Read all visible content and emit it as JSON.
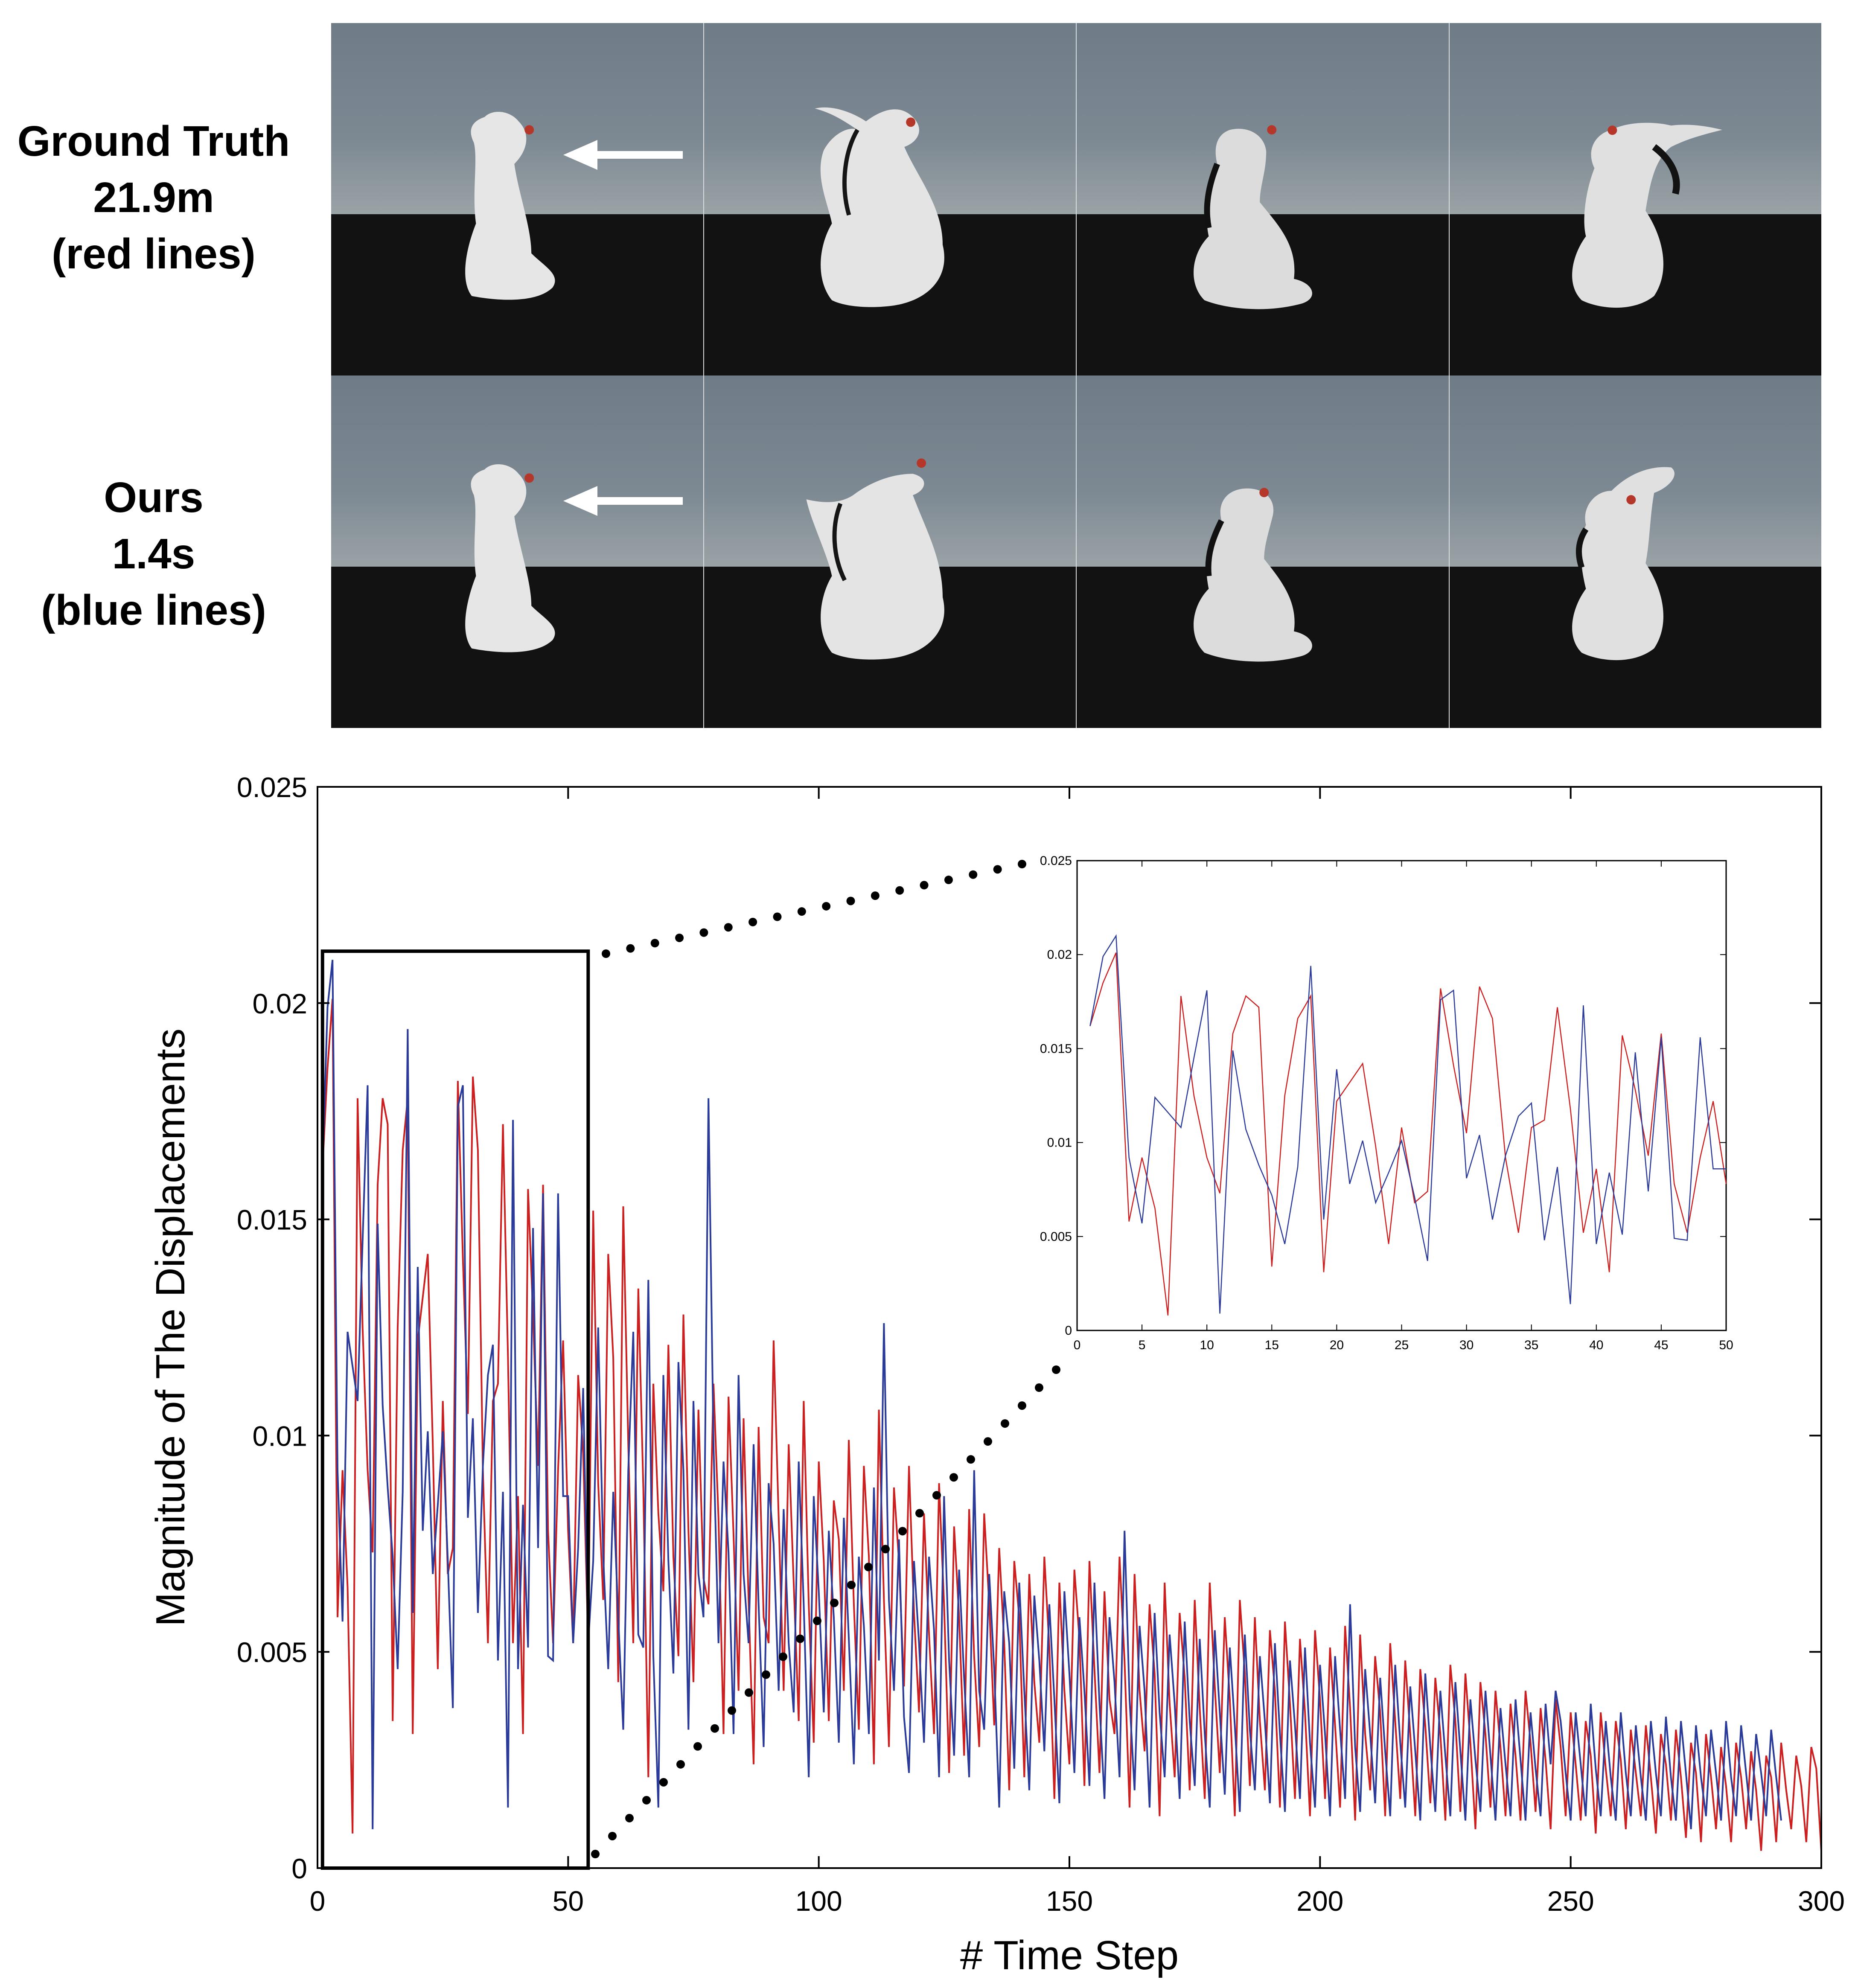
{
  "rows": [
    {
      "label": [
        "Ground Truth",
        "21.9m",
        "(red lines)"
      ],
      "frame_count": 4
    },
    {
      "label": [
        "Ours",
        "1.4s",
        "(blue lines)"
      ],
      "frame_count": 4
    }
  ],
  "colors": {
    "ground_truth": "#cc1f1f",
    "ours": "#2b3b9a",
    "marker": "#b5372a"
  },
  "icons": {
    "arrow": "left-arrow-icon",
    "point": "red-dot-marker"
  },
  "chart_data": {
    "type": "line",
    "title": "",
    "xlabel": "# Time Step",
    "ylabel": "Magnitude of The Displacements",
    "xlim": [
      0,
      300
    ],
    "ylim": [
      0,
      0.025
    ],
    "xticks": [
      0,
      50,
      100,
      150,
      200,
      250,
      300
    ],
    "yticks": [
      0,
      0.005,
      0.01,
      0.015,
      0.02,
      0.025
    ],
    "xtick_labels": [
      "0",
      "50",
      "100",
      "150",
      "200",
      "250",
      "300"
    ],
    "ytick_labels": [
      "0",
      "0.005",
      "0.01",
      "0.015",
      "0.02",
      "0.025"
    ],
    "series": [
      {
        "key": "ground_truth",
        "color": "#cc1f1f",
        "values": [
          0.0162,
          0.0185,
          0.0201,
          0.0058,
          0.0092,
          0.0065,
          0.0008,
          0.0178,
          0.0125,
          0.0092,
          0.0073,
          0.0158,
          0.0178,
          0.0172,
          0.0034,
          0.0125,
          0.0166,
          0.0178,
          0.0031,
          0.0122,
          0.0132,
          0.0142,
          0.0098,
          0.0046,
          0.0108,
          0.0068,
          0.0074,
          0.0182,
          0.0141,
          0.0105,
          0.0183,
          0.0166,
          0.0092,
          0.0052,
          0.0108,
          0.0112,
          0.0172,
          0.0118,
          0.0052,
          0.0086,
          0.0031,
          0.0157,
          0.0128,
          0.0093,
          0.0158,
          0.0078,
          0.0052,
          0.0092,
          0.0122,
          0.0078,
          0.0052,
          0.0114,
          0.0096,
          0.0052,
          0.0152,
          0.0089,
          0.0062,
          0.0142,
          0.0118,
          0.0043,
          0.0153,
          0.0098,
          0.0052,
          0.0134,
          0.0088,
          0.0021,
          0.0112,
          0.0082,
          0.0064,
          0.0121,
          0.0072,
          0.0049,
          0.0128,
          0.0078,
          0.0043,
          0.0106,
          0.0067,
          0.0061,
          0.0112,
          0.0081,
          0.0031,
          0.0109,
          0.0077,
          0.0041,
          0.0104,
          0.0062,
          0.0024,
          0.0102,
          0.0058,
          0.0052,
          0.0122,
          0.0081,
          0.0041,
          0.0098,
          0.0066,
          0.0034,
          0.0108,
          0.0061,
          0.0029,
          0.0094,
          0.0071,
          0.0034,
          0.0085,
          0.0076,
          0.0041,
          0.0099,
          0.0061,
          0.0032,
          0.0093,
          0.0072,
          0.0024,
          0.0106,
          0.0062,
          0.0028,
          0.0088,
          0.0071,
          0.0042,
          0.0093,
          0.0059,
          0.0036,
          0.0082,
          0.0054,
          0.0031,
          0.0089,
          0.0061,
          0.0022,
          0.0079,
          0.0058,
          0.0026,
          0.0083,
          0.0049,
          0.0028,
          0.0082,
          0.0061,
          0.0033,
          0.0074,
          0.0052,
          0.0018,
          0.0071,
          0.0058,
          0.0021,
          0.0068,
          0.0043,
          0.0029,
          0.0072,
          0.0051,
          0.0016,
          0.0066,
          0.0041,
          0.0024,
          0.0069,
          0.0053,
          0.0019,
          0.0071,
          0.0046,
          0.0022,
          0.0064,
          0.0039,
          0.0031,
          0.0072,
          0.0048,
          0.0014,
          0.0068,
          0.0041,
          0.0027,
          0.0061,
          0.0045,
          0.0012,
          0.0066,
          0.0038,
          0.0021,
          0.0059,
          0.0044,
          0.0018,
          0.0062,
          0.0037,
          0.0016,
          0.0066,
          0.0042,
          0.0022,
          0.0058,
          0.0039,
          0.0012,
          0.0062,
          0.0045,
          0.0019,
          0.0058,
          0.0034,
          0.0018,
          0.0055,
          0.0041,
          0.0014,
          0.0057,
          0.0038,
          0.0016,
          0.0053,
          0.0036,
          0.0012,
          0.0055,
          0.0039,
          0.0016,
          0.0051,
          0.0033,
          0.0014,
          0.0056,
          0.0037,
          0.0011,
          0.0054,
          0.0031,
          0.0018,
          0.0049,
          0.0036,
          0.0012,
          0.0052,
          0.0034,
          0.0016,
          0.0048,
          0.0031,
          0.0012,
          0.0046,
          0.0033,
          0.0015,
          0.0044,
          0.0031,
          0.0011,
          0.0047,
          0.0034,
          0.0013,
          0.0045,
          0.0029,
          0.0009,
          0.0043,
          0.0031,
          0.0014,
          0.0041,
          0.0028,
          0.0012,
          0.0038,
          0.0026,
          0.0011,
          0.0041,
          0.0029,
          0.0013,
          0.0037,
          0.0025,
          0.0009,
          0.0039,
          0.0028,
          0.0012,
          0.0036,
          0.0024,
          0.0011,
          0.0034,
          0.0026,
          0.0008,
          0.0036,
          0.0023,
          0.0012,
          0.0034,
          0.0025,
          0.0009,
          0.0032,
          0.0022,
          0.0012,
          0.0033,
          0.0021,
          0.0008,
          0.0031,
          0.0024,
          0.0011,
          0.0032,
          0.0021,
          0.0007,
          0.0029,
          0.0022,
          0.0006,
          0.0031,
          0.0021,
          0.0009,
          0.0028,
          0.0019,
          0.0006,
          0.0029,
          0.0021,
          0.0009,
          0.0027,
          0.0018,
          0.0004,
          0.0026,
          0.0021,
          0.0006,
          0.0029,
          0.0018,
          0.0009,
          0.0026,
          0.0019,
          0.0006,
          0.0028,
          0.0023,
          0.0004
        ]
      },
      {
        "key": "ours",
        "color": "#2b3b9a",
        "values": [
          0.0162,
          0.0199,
          0.021,
          0.0092,
          0.0057,
          0.0124,
          0.0116,
          0.0108,
          0.0145,
          0.0181,
          0.0009,
          0.0149,
          0.0107,
          0.0088,
          0.0072,
          0.0046,
          0.0087,
          0.0194,
          0.0059,
          0.0139,
          0.0078,
          0.0101,
          0.0068,
          0.0084,
          0.0101,
          0.0071,
          0.0037,
          0.0176,
          0.0181,
          0.0081,
          0.0104,
          0.0059,
          0.0093,
          0.0114,
          0.0121,
          0.0048,
          0.0087,
          0.0014,
          0.0173,
          0.0046,
          0.0084,
          0.0051,
          0.0148,
          0.0074,
          0.0156,
          0.0049,
          0.0048,
          0.0156,
          0.0086,
          0.0086,
          0.0052,
          0.0074,
          0.0111,
          0.0052,
          0.0071,
          0.0125,
          0.0072,
          0.0046,
          0.0087,
          0.0058,
          0.0032,
          0.0092,
          0.0124,
          0.0054,
          0.0051,
          0.0136,
          0.0049,
          0.0014,
          0.0114,
          0.0071,
          0.0045,
          0.0117,
          0.0092,
          0.0032,
          0.0108,
          0.0068,
          0.0058,
          0.0178,
          0.0098,
          0.0052,
          0.0094,
          0.0073,
          0.0031,
          0.0114,
          0.0068,
          0.0052,
          0.0098,
          0.0061,
          0.0028,
          0.0089,
          0.0075,
          0.0041,
          0.0083,
          0.0052,
          0.0036,
          0.0094,
          0.0061,
          0.0021,
          0.0086,
          0.0064,
          0.0036,
          0.0078,
          0.0058,
          0.0029,
          0.0081,
          0.0053,
          0.0024,
          0.0072,
          0.0056,
          0.0031,
          0.0088,
          0.0048,
          0.0126,
          0.0062,
          0.0041,
          0.0076,
          0.0035,
          0.0022,
          0.0071,
          0.0052,
          0.0029,
          0.0072,
          0.0055,
          0.0021,
          0.0086,
          0.0048,
          0.0026,
          0.0069,
          0.0044,
          0.0021,
          0.0092,
          0.0041,
          0.0032,
          0.0068,
          0.0046,
          0.0014,
          0.0064,
          0.0052,
          0.0023,
          0.0066,
          0.0041,
          0.0018,
          0.0063,
          0.0048,
          0.0027,
          0.0061,
          0.0039,
          0.0015,
          0.0064,
          0.0045,
          0.0022,
          0.0058,
          0.0041,
          0.0019,
          0.0066,
          0.0038,
          0.0016,
          0.0058,
          0.0043,
          0.0021,
          0.0078,
          0.0039,
          0.0018,
          0.0056,
          0.0041,
          0.0014,
          0.0059,
          0.0036,
          0.0021,
          0.0054,
          0.0038,
          0.0016,
          0.0057,
          0.0034,
          0.0019,
          0.0053,
          0.0031,
          0.0014,
          0.0055,
          0.0036,
          0.0017,
          0.0051,
          0.0033,
          0.0013,
          0.0054,
          0.0032,
          0.0018,
          0.0049,
          0.0034,
          0.0015,
          0.0052,
          0.0031,
          0.0013,
          0.0048,
          0.0033,
          0.0016,
          0.0051,
          0.0029,
          0.0014,
          0.0047,
          0.0031,
          0.0012,
          0.0049,
          0.0032,
          0.0016,
          0.0061,
          0.0028,
          0.0013,
          0.0046,
          0.0031,
          0.0015,
          0.0044,
          0.0027,
          0.0012,
          0.0047,
          0.0029,
          0.0014,
          0.0042,
          0.0027,
          0.0011,
          0.0045,
          0.0028,
          0.0013,
          0.0041,
          0.0026,
          0.0012,
          0.0043,
          0.0027,
          0.0011,
          0.0039,
          0.0025,
          0.0013,
          0.0041,
          0.0026,
          0.0011,
          0.0037,
          0.0024,
          0.0012,
          0.0039,
          0.0025,
          0.0011,
          0.0036,
          0.0023,
          0.0012,
          0.0038,
          0.0024,
          0.0041,
          0.0034,
          0.0022,
          0.0011,
          0.0036,
          0.0024,
          0.0012,
          0.0038,
          0.0023,
          0.0012,
          0.0034,
          0.0021,
          0.0011,
          0.0036,
          0.0022,
          0.0012,
          0.0033,
          0.0021,
          0.0011,
          0.0034,
          0.0022,
          0.0012,
          0.0035,
          0.0021,
          0.0011,
          0.0034,
          0.0022,
          0.0009,
          0.0033,
          0.0021,
          0.0012,
          0.0032,
          0.0022,
          0.0011,
          0.0034,
          0.0021,
          0.0012,
          0.0033,
          0.0022,
          0.0011,
          0.0031,
          0.0022,
          0.0012,
          0.0032,
          0.0021,
          0.0011
        ]
      }
    ],
    "inset": {
      "xlim": [
        0,
        50
      ],
      "ylim": [
        0,
        0.025
      ],
      "xticks": [
        0,
        5,
        10,
        15,
        20,
        25,
        30,
        35,
        40,
        45,
        50
      ],
      "yticks": [
        0,
        0.005,
        0.01,
        0.015,
        0.02,
        0.025
      ],
      "xtick_labels": [
        "0",
        "5",
        "10",
        "15",
        "20",
        "25",
        "30",
        "35",
        "40",
        "45",
        "50"
      ],
      "ytick_labels": [
        "0",
        "0.005",
        "0.01",
        "0.015",
        "0.02",
        "0.025"
      ],
      "zoom_range": {
        "x": [
          1,
          54
        ],
        "y": [
          0,
          0.0212
        ]
      }
    }
  }
}
